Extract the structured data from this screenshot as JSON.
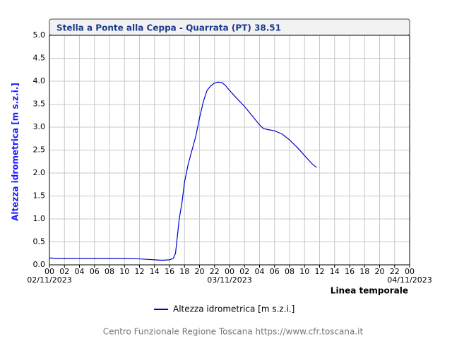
{
  "chart_data": {
    "type": "line",
    "title": "Stella a Ponte alla Ceppa - Quarrata (PT) 38.51",
    "y_label": "Altezza idrometrica [m s.z.i.]",
    "x_label": "Linea temporale",
    "footer": "Centro Funzionale Regione Toscana https://www.cfr.toscana.it",
    "xlim": [
      0,
      48
    ],
    "xticks": [
      {
        "value": 0,
        "label": "00"
      },
      {
        "value": 2,
        "label": "02"
      },
      {
        "value": 4,
        "label": "04"
      },
      {
        "value": 6,
        "label": "06"
      },
      {
        "value": 8,
        "label": "08"
      },
      {
        "value": 10,
        "label": "10"
      },
      {
        "value": 12,
        "label": "12"
      },
      {
        "value": 14,
        "label": "14"
      },
      {
        "value": 16,
        "label": "16"
      },
      {
        "value": 18,
        "label": "18"
      },
      {
        "value": 20,
        "label": "20"
      },
      {
        "value": 22,
        "label": "22"
      },
      {
        "value": 24,
        "label": "00"
      },
      {
        "value": 26,
        "label": "02"
      },
      {
        "value": 28,
        "label": "04"
      },
      {
        "value": 30,
        "label": "06"
      },
      {
        "value": 32,
        "label": "08"
      },
      {
        "value": 34,
        "label": "10"
      },
      {
        "value": 36,
        "label": "12"
      },
      {
        "value": 38,
        "label": "14"
      },
      {
        "value": 40,
        "label": "16"
      },
      {
        "value": 42,
        "label": "18"
      },
      {
        "value": 44,
        "label": "20"
      },
      {
        "value": 46,
        "label": "22"
      },
      {
        "value": 48,
        "label": "00"
      }
    ],
    "date_labels": [
      {
        "value": 0,
        "label": "02/11/2023"
      },
      {
        "value": 24,
        "label": "03/11/2023"
      },
      {
        "value": 48,
        "label": "04/11/2023"
      }
    ],
    "ylim": [
      0,
      5
    ],
    "yticks": [
      {
        "value": 0,
        "label": "0.0"
      },
      0.5,
      {
        "value": 1,
        "label": "1.0"
      },
      1.5,
      {
        "value": 2,
        "label": "2.0"
      },
      2.5,
      {
        "value": 3,
        "label": "3.0"
      },
      3.5,
      {
        "value": 4,
        "label": "4.0"
      },
      4.5,
      {
        "value": 5,
        "label": "5.0"
      }
    ],
    "grid": true,
    "x": [
      0,
      1,
      2,
      4,
      6,
      8,
      10,
      12,
      13,
      14,
      15,
      16,
      16.5,
      16.8,
      17,
      17.3,
      17.7,
      18,
      18.5,
      19,
      19.5,
      20,
      20.5,
      21,
      21.5,
      22,
      22.5,
      23,
      23.5,
      24,
      25,
      26,
      27,
      28,
      28.5,
      29,
      30,
      31,
      32,
      33,
      34,
      35,
      35.6
    ],
    "series": [
      {
        "name": "Altezza idrometrica [m s.z.i.]",
        "color": "#0000cc",
        "values": [
          0.15,
          0.14,
          0.14,
          0.14,
          0.14,
          0.14,
          0.14,
          0.13,
          0.12,
          0.11,
          0.1,
          0.11,
          0.14,
          0.25,
          0.55,
          1.0,
          1.4,
          1.8,
          2.2,
          2.5,
          2.8,
          3.2,
          3.55,
          3.8,
          3.9,
          3.96,
          3.98,
          3.97,
          3.9,
          3.8,
          3.62,
          3.45,
          3.25,
          3.05,
          2.97,
          2.95,
          2.92,
          2.85,
          2.72,
          2.56,
          2.38,
          2.2,
          2.12
        ]
      }
    ]
  }
}
